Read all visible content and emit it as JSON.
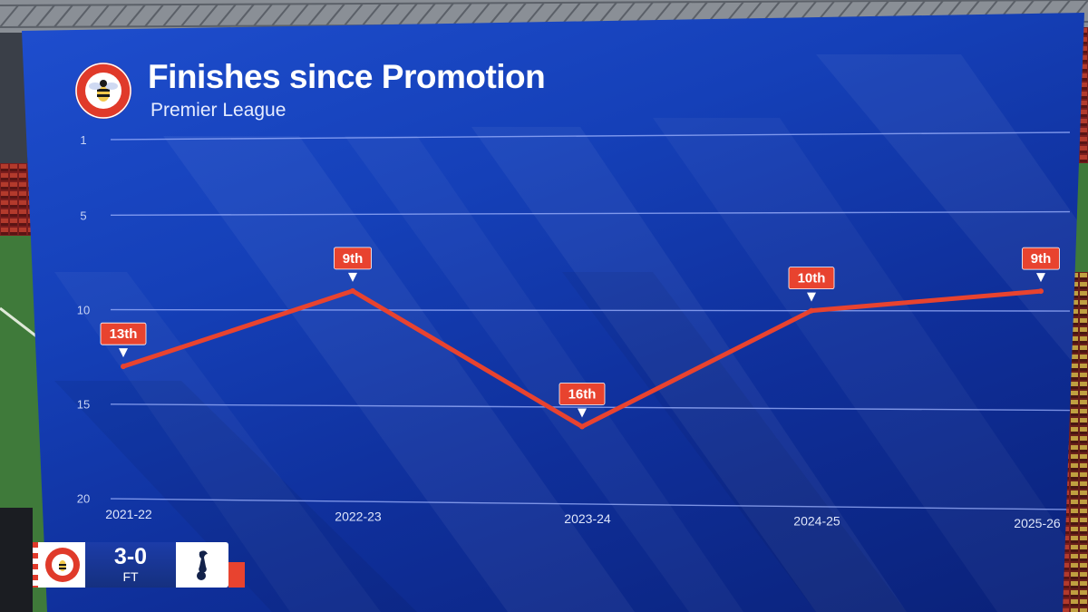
{
  "header": {
    "title": "Finishes since Promotion",
    "subtitle": "Premier League"
  },
  "scorebug": {
    "score": "3-0",
    "status": "FT"
  },
  "colors": {
    "screen_blue": "#1540b8",
    "line_red": "#e8432f",
    "label_red": "#e8432f",
    "gridline": "#9fb4ff"
  },
  "icons": {
    "home_badge": "brentford-badge-icon",
    "away_badge": "tottenham-badge-icon"
  },
  "chart_data": {
    "type": "line",
    "title": "Finishes since Promotion",
    "subtitle": "Premier League",
    "xlabel": "",
    "ylabel": "",
    "ylim": [
      1,
      20
    ],
    "y_inverted": true,
    "grid": true,
    "y_ticks": [
      1,
      5,
      10,
      15,
      20
    ],
    "categories": [
      "2021-22",
      "2022-23",
      "2023-24",
      "2024-25",
      "2025-26"
    ],
    "series": [
      {
        "values": [
          13,
          9,
          16,
          10,
          9
        ],
        "labels": [
          "13th",
          "9th",
          "16th",
          "10th",
          "9th"
        ]
      }
    ]
  }
}
